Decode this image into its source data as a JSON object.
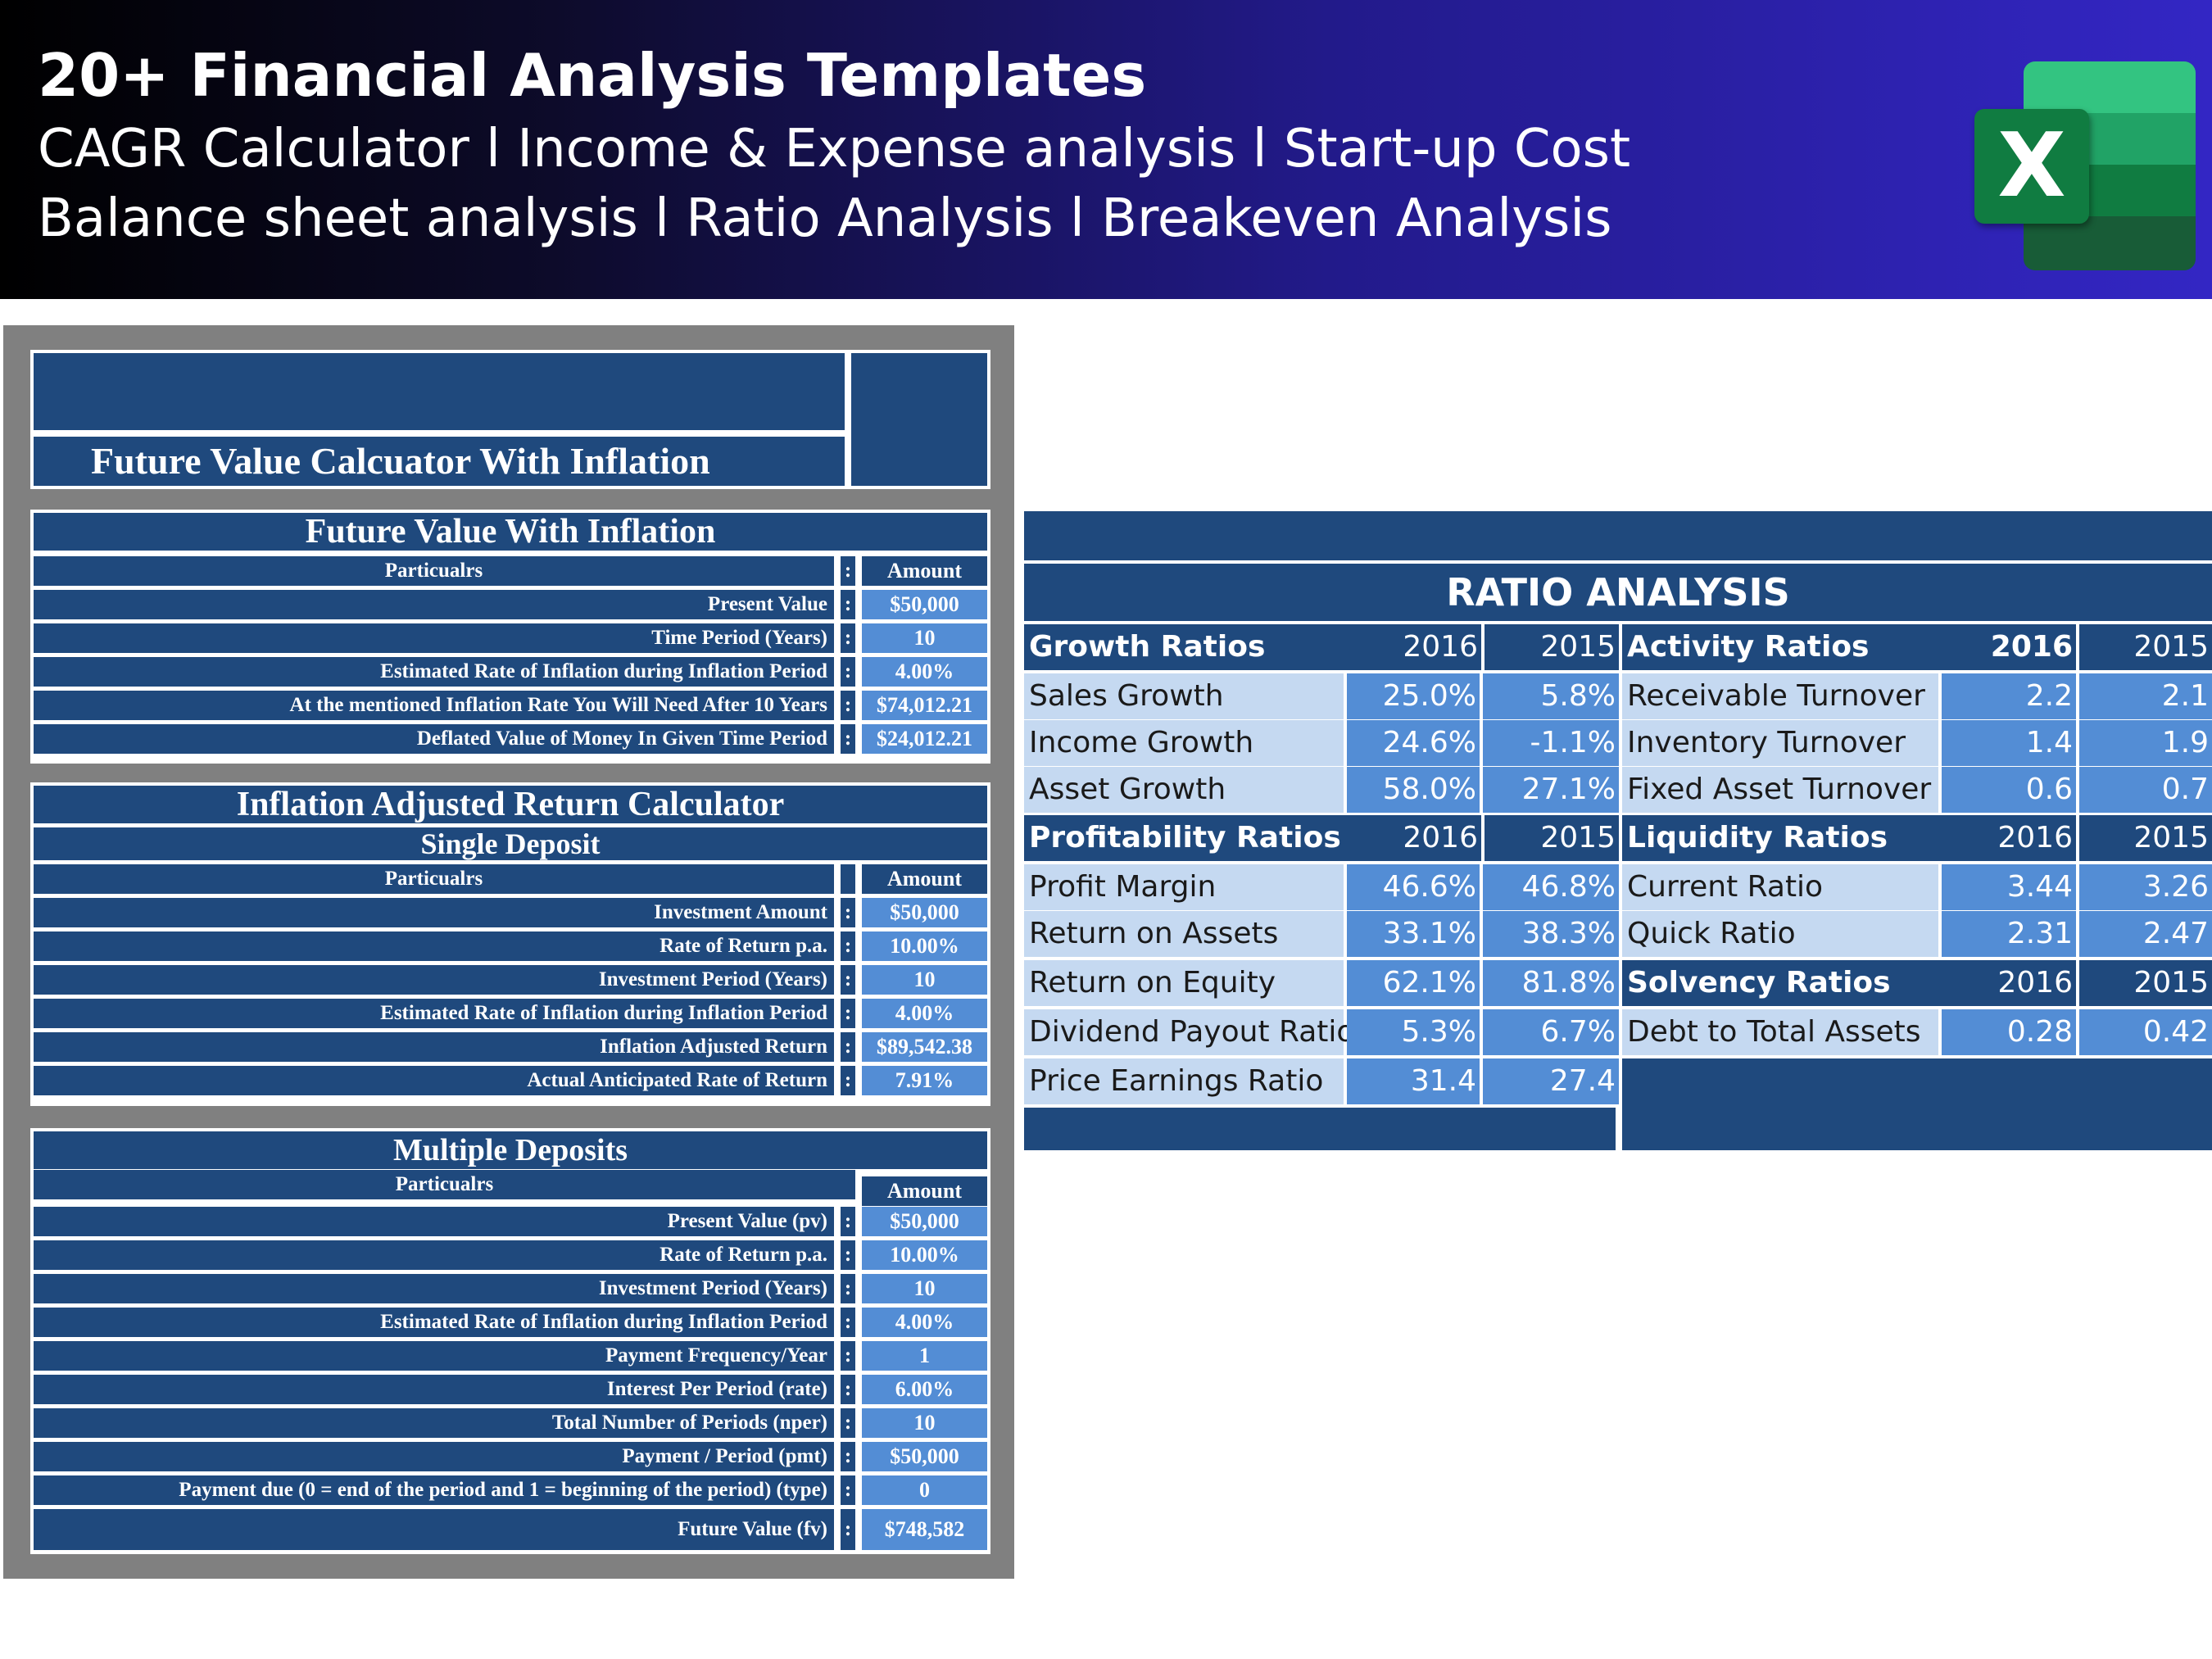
{
  "banner": {
    "title": "20+ Financial Analysis Templates",
    "line1": "CAGR Calculator l Income & Expense analysis l Start-up Cost",
    "line2": "Balance sheet analysis l Ratio Analysis l Breakeven Analysis",
    "logo_letter": "X",
    "logo_icon": "excel-icon"
  },
  "fv_calc": {
    "title": "Future Value Calcuator With Inflation",
    "section1": {
      "title": "Future Value With Inflation",
      "header": {
        "particulars": "Particualrs",
        "colon": ":",
        "amount": "Amount"
      },
      "rows": [
        {
          "label": "Present Value",
          "colon": ":",
          "value": "$50,000"
        },
        {
          "label": "Time Period (Years)",
          "colon": ":",
          "value": "10"
        },
        {
          "label": "Estimated Rate of Inflation during Inflation Period",
          "colon": ":",
          "value": "4.00%"
        },
        {
          "label": "At the mentioned Inflation Rate You Will Need After 10 Years",
          "colon": ":",
          "value": "$74,012.21"
        },
        {
          "label": "Deflated Value of Money In Given Time Period",
          "colon": ":",
          "value": "$24,012.21"
        }
      ]
    },
    "section2": {
      "title": "Inflation Adjusted Return Calculator",
      "subtitle": "Single Deposit",
      "header": {
        "particulars": "Particualrs",
        "colon": "",
        "amount": "Amount"
      },
      "rows": [
        {
          "label": "Investment Amount",
          "colon": ":",
          "value": "$50,000"
        },
        {
          "label": "Rate of Return p.a.",
          "colon": ":",
          "value": "10.00%"
        },
        {
          "label": "Investment Period (Years)",
          "colon": ":",
          "value": "10"
        },
        {
          "label": "Estimated Rate of Inflation during Inflation Period",
          "colon": ":",
          "value": "4.00%"
        },
        {
          "label": "Inflation Adjusted Return",
          "colon": ":",
          "value": "$89,542.38"
        },
        {
          "label": "Actual Anticipated Rate of Return",
          "colon": ":",
          "value": "7.91%"
        }
      ]
    },
    "section3": {
      "title": "Multiple Deposits",
      "header": {
        "particulars": "Particualrs",
        "colon": "",
        "amount": "Amount"
      },
      "rows": [
        {
          "label": "Present Value (pv)",
          "colon": ":",
          "value": "$50,000"
        },
        {
          "label": "Rate of Return p.a.",
          "colon": ":",
          "value": "10.00%"
        },
        {
          "label": "Investment Period (Years)",
          "colon": ":",
          "value": "10"
        },
        {
          "label": "Estimated Rate of Inflation during Inflation Period",
          "colon": ":",
          "value": "4.00%"
        },
        {
          "label": "Payment Frequency/Year",
          "colon": ":",
          "value": "1"
        },
        {
          "label": "Interest Per Period (rate)",
          "colon": ":",
          "value": "6.00%"
        },
        {
          "label": "Total Number of Periods (nper)",
          "colon": ":",
          "value": "10"
        },
        {
          "label": "Payment / Period (pmt)",
          "colon": ":",
          "value": "$50,000"
        },
        {
          "label": "Payment due (0 = end of the period and 1 = beginning of the period) (type)",
          "colon": ":",
          "value": "0"
        },
        {
          "label": "Future Value (fv)",
          "colon": ":",
          "value": "$748,582"
        }
      ]
    }
  },
  "ratio": {
    "title": "RATIO ANALYSIS",
    "growth": {
      "title": "Growth Ratios",
      "y1": "2016",
      "y2": "2015",
      "rows": [
        {
          "label": "Sales Growth",
          "v1": "25.0%",
          "v2": "5.8%"
        },
        {
          "label": "Income Growth",
          "v1": "24.6%",
          "v2": "-1.1%"
        },
        {
          "label": "Asset Growth",
          "v1": "58.0%",
          "v2": "27.1%"
        }
      ]
    },
    "profitability": {
      "title": "Profitability Ratios",
      "y1": "2016",
      "y2": "2015",
      "rows": [
        {
          "label": "Profit Margin",
          "v1": "46.6%",
          "v2": "46.8%"
        },
        {
          "label": "Return on Assets",
          "v1": "33.1%",
          "v2": "38.3%"
        },
        {
          "label": "Return on Equity",
          "v1": "62.1%",
          "v2": "81.8%"
        },
        {
          "label": "Dividend Payout Ratio",
          "v1": "5.3%",
          "v2": "6.7%"
        },
        {
          "label": "Price Earnings Ratio",
          "v1": "31.4",
          "v2": "27.4"
        }
      ]
    },
    "activity": {
      "title": "Activity Ratios",
      "y1": "2016",
      "y2": "2015",
      "rows": [
        {
          "label": "Receivable Turnover",
          "v1": "2.2",
          "v2": "2.1"
        },
        {
          "label": "Inventory Turnover",
          "v1": "1.4",
          "v2": "1.9"
        },
        {
          "label": "Fixed Asset Turnover",
          "v1": "0.6",
          "v2": "0.7"
        }
      ]
    },
    "liquidity": {
      "title": "Liquidity Ratios",
      "y1": "2016",
      "y2": "2015",
      "rows": [
        {
          "label": "Current Ratio",
          "v1": "3.44",
          "v2": "3.26"
        },
        {
          "label": "Quick Ratio",
          "v1": "2.31",
          "v2": "2.47"
        }
      ]
    },
    "solvency": {
      "title": "Solvency Ratios",
      "y1": "2016",
      "y2": "2015",
      "rows": [
        {
          "label": "Debt to Total Assets",
          "v1": "0.28",
          "v2": "0.42"
        }
      ]
    }
  }
}
